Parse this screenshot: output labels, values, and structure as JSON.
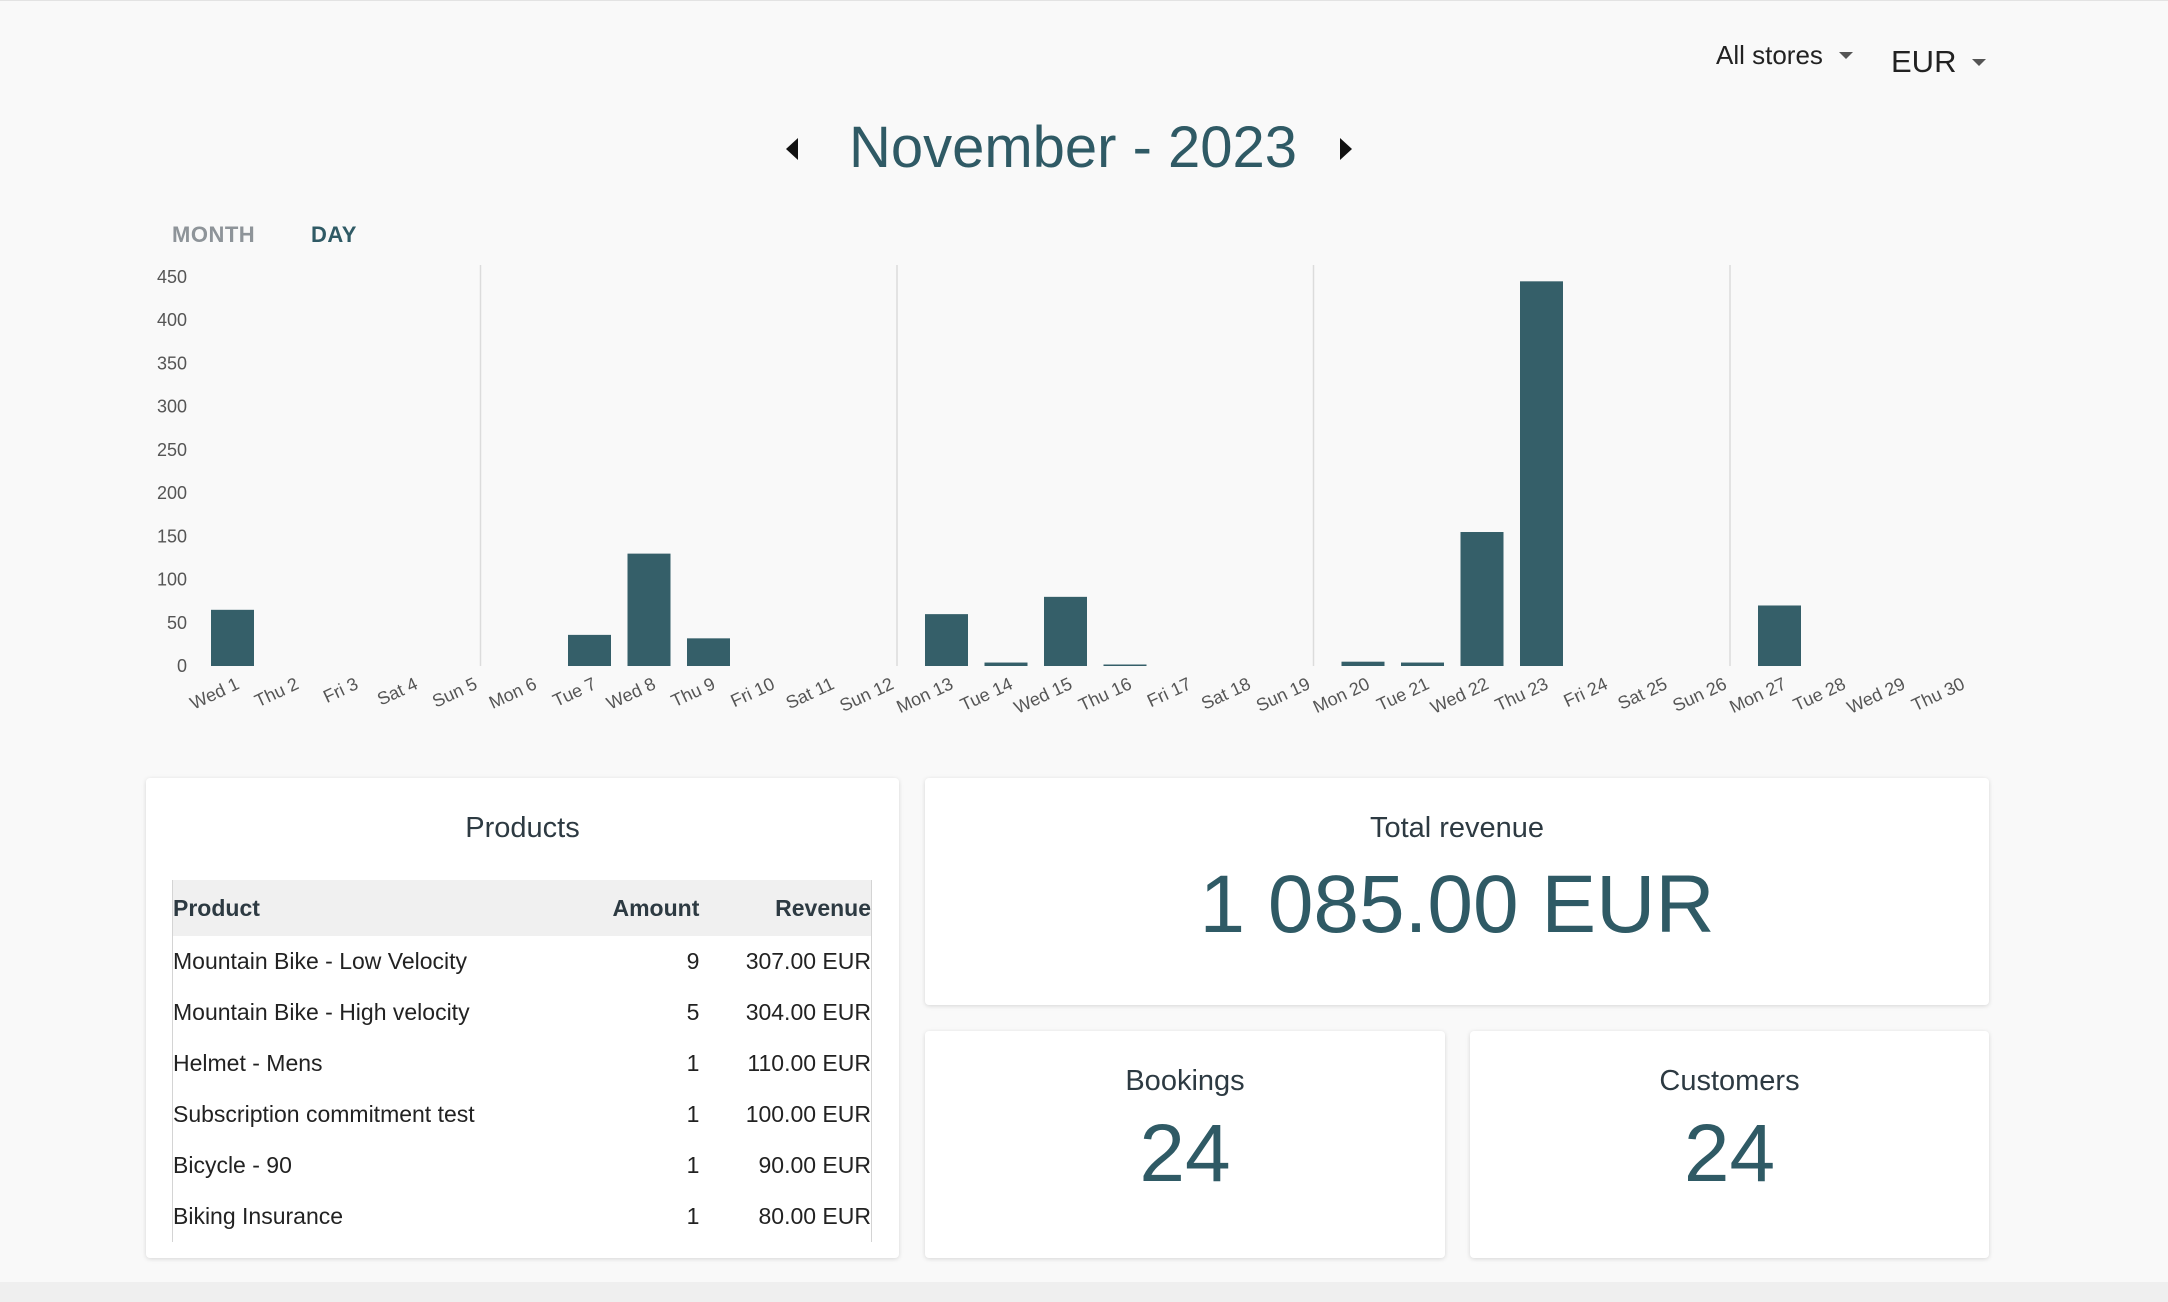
{
  "header": {
    "store_filter": "All stores",
    "currency": "EUR",
    "period_title": "November - 2023"
  },
  "view_tabs": {
    "month": "MONTH",
    "day": "DAY",
    "active": "day"
  },
  "chart_data": {
    "type": "bar",
    "color": "#355f69",
    "categories": [
      "Wed 1",
      "Thu 2",
      "Fri 3",
      "Sat 4",
      "Sun 5",
      "Mon 6",
      "Tue 7",
      "Wed 8",
      "Thu 9",
      "Fri 10",
      "Sat 11",
      "Sun 12",
      "Mon 13",
      "Tue 14",
      "Wed 15",
      "Thu 16",
      "Fri 17",
      "Sat 18",
      "Sun 19",
      "Mon 20",
      "Tue 21",
      "Wed 22",
      "Thu 23",
      "Fri 24",
      "Sat 25",
      "Sun 26",
      "Mon 27",
      "Tue 28",
      "Wed 29",
      "Thu 30"
    ],
    "values": [
      65,
      0,
      0,
      0,
      0,
      0,
      36,
      130,
      32,
      0,
      0,
      0,
      60,
      4,
      80,
      1,
      0,
      0,
      0,
      5,
      4,
      155,
      445,
      0,
      0,
      0,
      70,
      0,
      0,
      0
    ],
    "yticks": [
      0,
      50,
      100,
      150,
      200,
      250,
      300,
      350,
      400,
      450
    ],
    "ylim": [
      0,
      450
    ],
    "week_separators_before": [
      "Mon 6",
      "Mon 13",
      "Mon 20",
      "Mon 27"
    ],
    "xlabel": "",
    "ylabel": "",
    "title": ""
  },
  "products": {
    "title": "Products",
    "columns": [
      "Product",
      "Amount",
      "Revenue"
    ],
    "rows": [
      {
        "product": "Mountain Bike - Low Velocity",
        "amount": "9",
        "revenue": "307.00 EUR"
      },
      {
        "product": "Mountain Bike - High velocity",
        "amount": "5",
        "revenue": "304.00 EUR"
      },
      {
        "product": "Helmet - Mens",
        "amount": "1",
        "revenue": "110.00 EUR"
      },
      {
        "product": "Subscription commitment test",
        "amount": "1",
        "revenue": "100.00 EUR"
      },
      {
        "product": "Bicycle - 90",
        "amount": "1",
        "revenue": "90.00 EUR"
      },
      {
        "product": "Biking Insurance",
        "amount": "1",
        "revenue": "80.00 EUR"
      }
    ]
  },
  "stats": {
    "revenue": {
      "label": "Total revenue",
      "value": "1 085.00 EUR"
    },
    "bookings": {
      "label": "Bookings",
      "value": "24"
    },
    "customers": {
      "label": "Customers",
      "value": "24"
    }
  }
}
